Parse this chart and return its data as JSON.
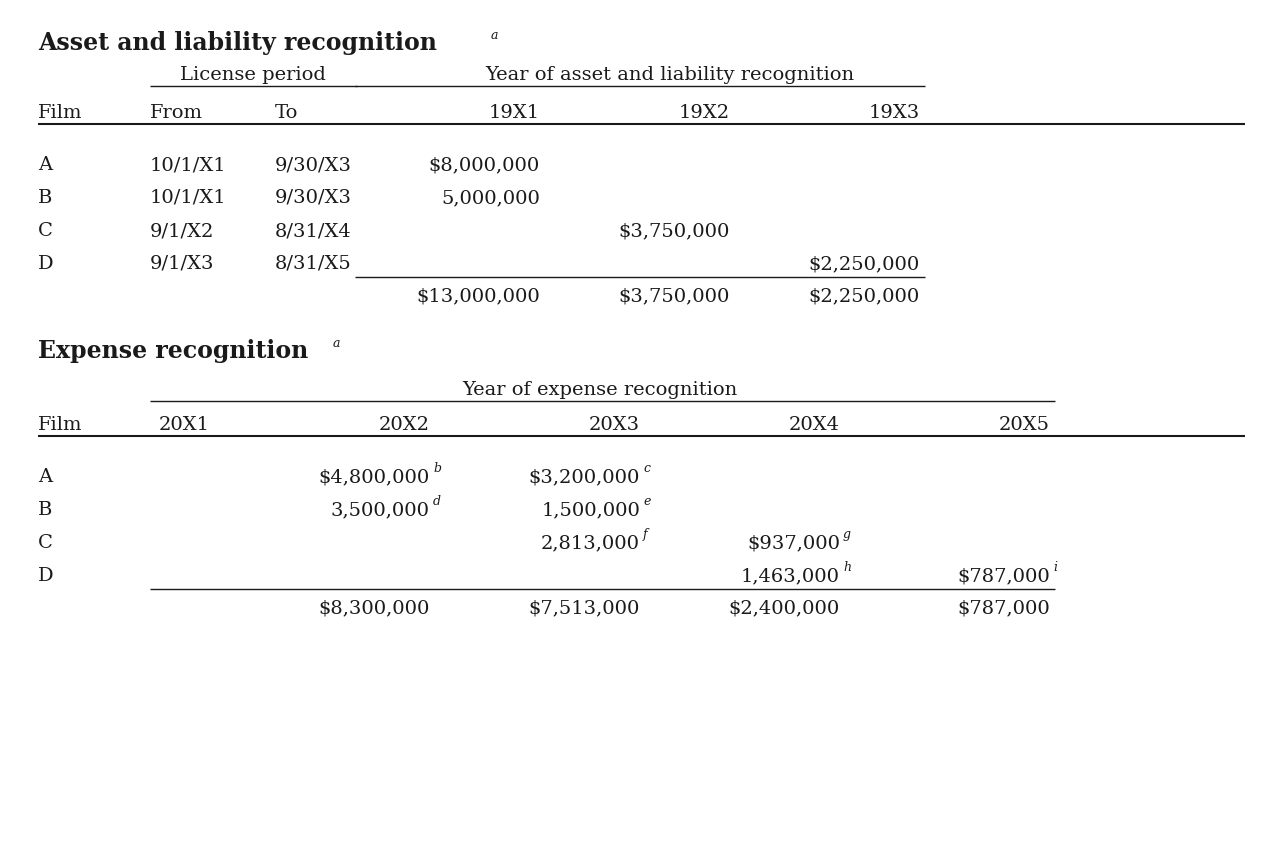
{
  "bg_color": "#ffffff",
  "text_color": "#1a1a1a",
  "title1": "Asset and liability recognition",
  "title2": "Expense recognition",
  "section1": {
    "col_headers": [
      "Film",
      "From",
      "To",
      "19X1",
      "19X2",
      "19X3"
    ],
    "rows": [
      [
        "A",
        "10/1/X1",
        "9/30/X3",
        "$8,000,000",
        "",
        ""
      ],
      [
        "B",
        "10/1/X1",
        "9/30/X3",
        "5,000,000",
        "",
        ""
      ],
      [
        "C",
        "9/1/X2",
        "8/31/X4",
        "",
        "$3,750,000",
        ""
      ],
      [
        "D",
        "9/1/X3",
        "8/31/X5",
        "",
        "",
        "$2,250,000"
      ]
    ],
    "total_row": [
      "",
      "",
      "",
      "$13,000,000",
      "$3,750,000",
      "$2,250,000"
    ]
  },
  "section2": {
    "col_headers": [
      "Film",
      "20X1",
      "20X2",
      "20X3",
      "20X4",
      "20X5"
    ],
    "rows": [
      [
        "A",
        "",
        "$4,800,000",
        "$3,200,000",
        "",
        ""
      ],
      [
        "B",
        "",
        "3,500,000",
        "1,500,000",
        "",
        ""
      ],
      [
        "C",
        "",
        "",
        "2,813,000",
        "$937,000",
        ""
      ],
      [
        "D",
        "",
        "",
        "",
        "1,463,000",
        "$787,000"
      ]
    ],
    "row_superscripts": [
      [
        "",
        "",
        "b",
        "c",
        "",
        ""
      ],
      [
        "",
        "",
        "d",
        "e",
        "",
        ""
      ],
      [
        "",
        "",
        "",
        "f",
        "g",
        ""
      ],
      [
        "",
        "",
        "",
        "",
        "h",
        "i"
      ]
    ],
    "total_row": [
      "",
      "",
      "$8,300,000",
      "$7,513,000",
      "$2,400,000",
      "$787,000"
    ]
  }
}
